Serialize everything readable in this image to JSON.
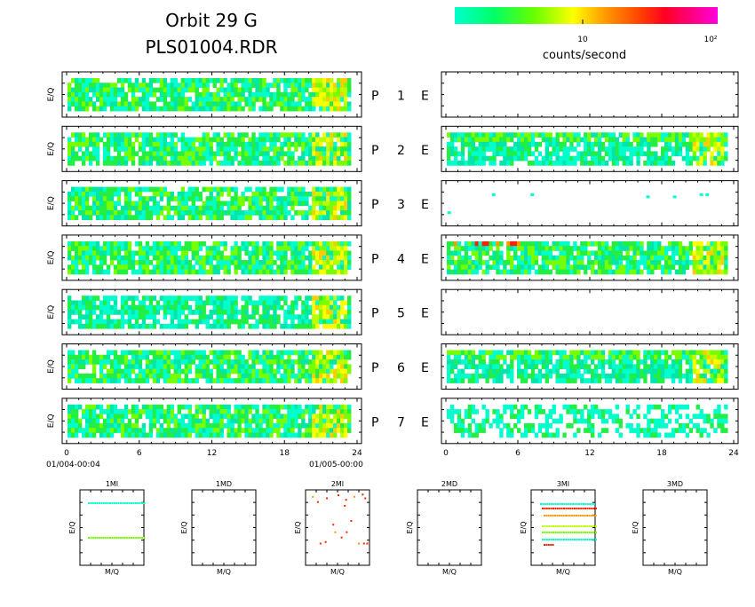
{
  "header": {
    "title_line1": "Orbit 29 G",
    "title_line2": "PLS01004.RDR"
  },
  "colorbar": {
    "label": "counts/second",
    "tick_10": "10",
    "tick_100": "10²",
    "colors": [
      "#00ffcc",
      "#00ff66",
      "#66ff00",
      "#ccff00",
      "#ffcc00",
      "#ff6600",
      "#ff0033",
      "#ff00cc"
    ]
  },
  "panels": {
    "ylabel": "E/Q",
    "rows": [
      {
        "id": "1",
        "p": "P",
        "e": "E",
        "left": "high",
        "right": "empty"
      },
      {
        "id": "2",
        "p": "P",
        "e": "E",
        "left": "high",
        "right": "band"
      },
      {
        "id": "3",
        "p": "P",
        "e": "E",
        "left": "high",
        "right": "sparse"
      },
      {
        "id": "4",
        "p": "P",
        "e": "E",
        "left": "high",
        "right": "full"
      },
      {
        "id": "5",
        "p": "P",
        "e": "E",
        "left": "med",
        "right": "empty"
      },
      {
        "id": "6",
        "p": "P",
        "e": "E",
        "left": "high",
        "right": "band"
      },
      {
        "id": "7",
        "p": "P",
        "e": "E",
        "left": "high",
        "right": "low"
      }
    ]
  },
  "xaxis": {
    "ticks": [
      "0",
      "6",
      "12",
      "18",
      "24"
    ],
    "start_label": "01/004-00:04",
    "end_label": "01/005-00:00"
  },
  "small_panels": {
    "xlabel": "M/Q",
    "ylabel": "E/Q",
    "items": [
      {
        "title": "1MI"
      },
      {
        "title": "1MD"
      },
      {
        "title": "2MI"
      },
      {
        "title": "2MD"
      },
      {
        "title": "3MI"
      },
      {
        "title": "3MD"
      }
    ]
  },
  "chart_data": {
    "type": "heatmap",
    "title": "Orbit 29 G PLS01004.RDR",
    "xlabel": "",
    "ylabel": "E/Q",
    "x_range": [
      0,
      24
    ],
    "x_ticks": [
      0,
      6,
      12,
      18,
      24
    ],
    "colorbar": {
      "label": "counts/second",
      "scale": "log",
      "ticks": [
        10,
        100
      ]
    },
    "series": [
      {
        "name": "P 1",
        "left": "dense",
        "right": "empty"
      },
      {
        "name": "P 2",
        "left": "dense",
        "right": "dense"
      },
      {
        "name": "P 3",
        "left": "dense",
        "right": "sparse"
      },
      {
        "name": "P 4",
        "left": "dense",
        "right": "dense"
      },
      {
        "name": "P 5",
        "left": "dense",
        "right": "empty"
      },
      {
        "name": "P 6",
        "left": "dense",
        "right": "dense"
      },
      {
        "name": "P 7",
        "left": "dense",
        "right": "low"
      }
    ],
    "small_panels": [
      "1MI",
      "1MD",
      "2MI",
      "2MD",
      "3MI",
      "3MD"
    ]
  }
}
